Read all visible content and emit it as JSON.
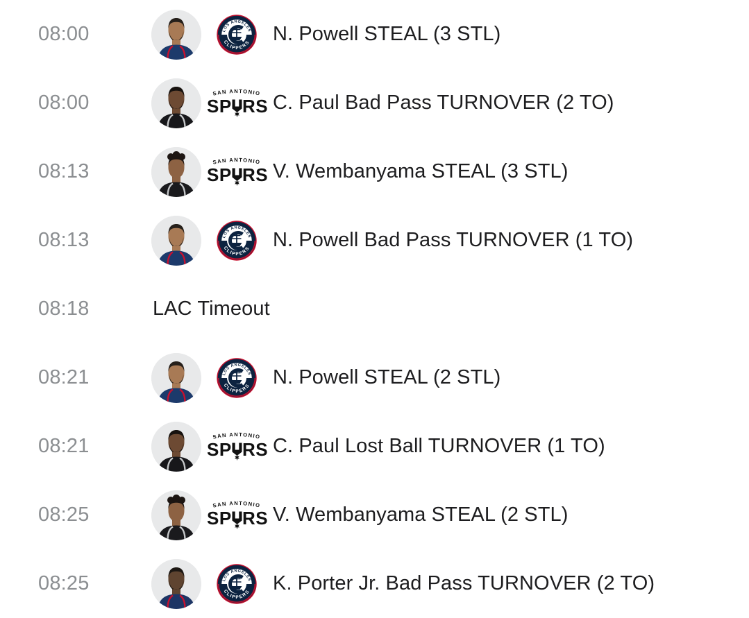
{
  "colors": {
    "background": "#ffffff",
    "time_text": "#8b8e91",
    "event_text": "#1d1d1f",
    "avatar_bg": "#e8e9ea",
    "clippers_navy": "#0c2340",
    "clippers_red": "#c8102e",
    "spurs_black": "#111111"
  },
  "logos": {
    "clippers": {
      "top_text": "LOS ANGELES",
      "bottom_text": "CLIPPERS"
    },
    "spurs": {
      "top_text": "SAN ANTONIO",
      "word_left": "SP",
      "word_right": "RS"
    }
  },
  "rows": [
    {
      "time": "08:00",
      "team": "clippers",
      "text": "N. Powell STEAL (3 STL)",
      "avatar": {
        "skin": "#a87a55",
        "hair": "#26201b",
        "beard": true,
        "curly": false,
        "jersey": "#1c3a6b",
        "trim": "#c8102e"
      }
    },
    {
      "time": "08:00",
      "team": "spurs",
      "text": "C. Paul Bad Pass TURNOVER (2 TO)",
      "avatar": {
        "skin": "#6d4a33",
        "hair": "#17120f",
        "beard": true,
        "curly": false,
        "jersey": "#17171a",
        "trim": "#c6c8ca"
      }
    },
    {
      "time": "08:13",
      "team": "spurs",
      "text": "V. Wembanyama STEAL (3 STL)",
      "avatar": {
        "skin": "#8d6243",
        "hair": "#1c1512",
        "beard": false,
        "curly": true,
        "jersey": "#1a1a1d",
        "trim": "#c6c8ca"
      }
    },
    {
      "time": "08:13",
      "team": "clippers",
      "text": "N. Powell Bad Pass TURNOVER (1 TO)",
      "avatar": {
        "skin": "#a87a55",
        "hair": "#26201b",
        "beard": true,
        "curly": false,
        "jersey": "#1c3a6b",
        "trim": "#c8102e"
      }
    },
    {
      "time": "08:18",
      "team": "none",
      "text": "LAC Timeout"
    },
    {
      "time": "08:21",
      "team": "clippers",
      "text": "N. Powell STEAL (2 STL)",
      "avatar": {
        "skin": "#a87a55",
        "hair": "#26201b",
        "beard": true,
        "curly": false,
        "jersey": "#1c3a6b",
        "trim": "#c8102e"
      }
    },
    {
      "time": "08:21",
      "team": "spurs",
      "text": "C. Paul Lost Ball TURNOVER (1 TO)",
      "avatar": {
        "skin": "#6d4a33",
        "hair": "#17120f",
        "beard": true,
        "curly": false,
        "jersey": "#17171a",
        "trim": "#c6c8ca"
      }
    },
    {
      "time": "08:25",
      "team": "spurs",
      "text": "V. Wembanyama STEAL (2 STL)",
      "avatar": {
        "skin": "#8d6243",
        "hair": "#1c1512",
        "beard": false,
        "curly": true,
        "jersey": "#1a1a1d",
        "trim": "#c6c8ca"
      }
    },
    {
      "time": "08:25",
      "team": "clippers",
      "text": "K. Porter Jr. Bad Pass TURNOVER (2 TO)",
      "avatar": {
        "skin": "#5f4430",
        "hair": "#1c1713",
        "beard": true,
        "curly": false,
        "jersey": "#1d3565",
        "trim": "#c8102e"
      }
    }
  ]
}
